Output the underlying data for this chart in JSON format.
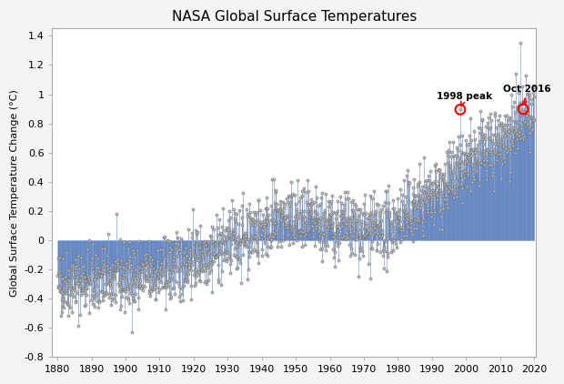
{
  "title": "NASA Global Surface Temperatures",
  "ylabel": "Global Surface Temperature Change (°C)",
  "xlim": [
    1878.5,
    2020.5
  ],
  "ylim": [
    -0.8,
    1.45
  ],
  "xticks": [
    1880,
    1890,
    1900,
    1910,
    1920,
    1930,
    1940,
    1950,
    1960,
    1970,
    1980,
    1990,
    2000,
    2010,
    2020
  ],
  "yticks": [
    -0.8,
    -0.6,
    -0.4,
    -0.2,
    0.0,
    0.2,
    0.4,
    0.6,
    0.8,
    1.0,
    1.2,
    1.4
  ],
  "line_color": "#5B7FBF",
  "marker_facecolor": "#C0C0C0",
  "marker_edgecolor": "#606060",
  "background_color": "#FFFFFF",
  "fig_background": "#F4F4F4",
  "annotation_1998_label": "1998 peak",
  "annotation_2016_label": "Oct 2016",
  "annotation_color": "red",
  "title_fontsize": 11,
  "axis_label_fontsize": 8,
  "tick_fontsize": 8,
  "peak_1998_year": 1998.25,
  "peak_1998_val": 0.895,
  "peak_2016_year": 2016.75,
  "peak_2016_val": 0.898,
  "peak_jan2016_val": 1.35
}
